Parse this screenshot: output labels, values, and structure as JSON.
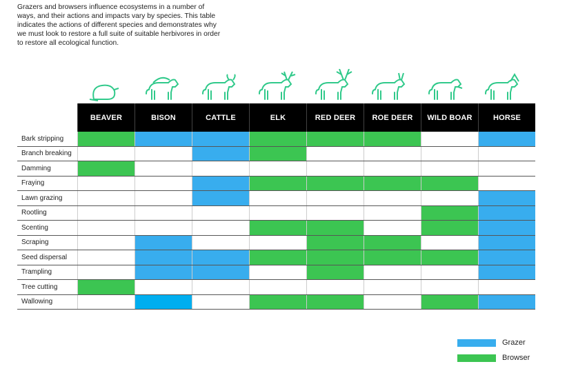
{
  "intro": "Grazers and browsers influence ecosystems in a number of ways, and their actions and impacts vary by species. This table indicates the actions of different species and demonstrates why we must look to restore a full suite of suitable herbivores in order to restore all ecological function.",
  "colors": {
    "grazer": "#38ADEE",
    "browser": "#3CC552",
    "wallowing_bison": "#00AEEF",
    "icon": "#2FC98A"
  },
  "chart_data": {
    "type": "table",
    "columns": [
      "BEAVER",
      "BISON",
      "CATTLE",
      "ELK",
      "RED DEER",
      "ROE DEER",
      "WILD BOAR",
      "HORSE"
    ],
    "icons": [
      "beaver-icon",
      "bison-icon",
      "cattle-icon",
      "elk-icon",
      "red-deer-icon",
      "roe-deer-icon",
      "wild-boar-icon",
      "horse-icon"
    ],
    "rows": [
      {
        "label": "Bark stripping",
        "cells": [
          "B",
          "G",
          "G",
          "B",
          "B",
          "B",
          "",
          "G"
        ]
      },
      {
        "label": "Branch breaking",
        "cells": [
          "",
          "",
          "G",
          "B",
          "",
          "",
          "",
          ""
        ]
      },
      {
        "label": "Damming",
        "cells": [
          "B",
          "",
          "",
          "",
          "",
          "",
          "",
          ""
        ]
      },
      {
        "label": "Fraying",
        "cells": [
          "",
          "",
          "G",
          "B",
          "B",
          "B",
          "B",
          ""
        ]
      },
      {
        "label": "Lawn grazing",
        "cells": [
          "",
          "",
          "G",
          "",
          "",
          "",
          "",
          "G"
        ]
      },
      {
        "label": "Rootling",
        "cells": [
          "",
          "",
          "",
          "",
          "",
          "",
          "B",
          "G"
        ]
      },
      {
        "label": "Scenting",
        "cells": [
          "",
          "",
          "",
          "B",
          "B",
          "",
          "B",
          "G"
        ]
      },
      {
        "label": "Scraping",
        "cells": [
          "",
          "G",
          "",
          "",
          "B",
          "B",
          "",
          "G"
        ]
      },
      {
        "label": "Seed dispersal",
        "cells": [
          "",
          "G",
          "G",
          "B",
          "B",
          "B",
          "B",
          "G"
        ]
      },
      {
        "label": "Trampling",
        "cells": [
          "",
          "G",
          "G",
          "",
          "B",
          "",
          "",
          "G"
        ]
      },
      {
        "label": "Tree cutting",
        "cells": [
          "B",
          "",
          "",
          "",
          "",
          "",
          "",
          ""
        ]
      },
      {
        "label": "Wallowing",
        "cells": [
          "",
          "W",
          "",
          "B",
          "B",
          "",
          "B",
          "G"
        ]
      }
    ],
    "legend": [
      {
        "key": "G",
        "label": "Grazer"
      },
      {
        "key": "B",
        "label": "Browser"
      }
    ]
  }
}
